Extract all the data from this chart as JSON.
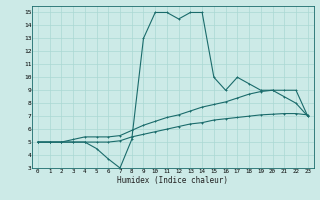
{
  "xlabel": "Humidex (Indice chaleur)",
  "xlim": [
    -0.5,
    23.5
  ],
  "ylim": [
    3,
    15.5
  ],
  "yticks": [
    3,
    4,
    5,
    6,
    7,
    8,
    9,
    10,
    11,
    12,
    13,
    14,
    15
  ],
  "xticks": [
    0,
    1,
    2,
    3,
    4,
    5,
    6,
    7,
    8,
    9,
    10,
    11,
    12,
    13,
    14,
    15,
    16,
    17,
    18,
    19,
    20,
    21,
    22,
    23
  ],
  "bg_color": "#cceae7",
  "grid_color": "#aad8d3",
  "line_color": "#1a6b6b",
  "line1_x": [
    0,
    1,
    2,
    3,
    4,
    5,
    6,
    7,
    8,
    9,
    10,
    11,
    12,
    13,
    14,
    15,
    16,
    17,
    18,
    19,
    20,
    21,
    22,
    23
  ],
  "line1_y": [
    5,
    5,
    5,
    5,
    5,
    4.5,
    3.7,
    3.0,
    5.2,
    13.0,
    15,
    15,
    14.5,
    15,
    15,
    10,
    9,
    10,
    9.5,
    9,
    9,
    8.5,
    8,
    7
  ],
  "line2_x": [
    0,
    1,
    2,
    3,
    4,
    5,
    6,
    7,
    8,
    9,
    10,
    11,
    12,
    13,
    14,
    15,
    16,
    17,
    18,
    19,
    20,
    21,
    22,
    23
  ],
  "line2_y": [
    5,
    5,
    5,
    5.2,
    5.4,
    5.4,
    5.4,
    5.5,
    5.9,
    6.3,
    6.6,
    6.9,
    7.1,
    7.4,
    7.7,
    7.9,
    8.1,
    8.4,
    8.7,
    8.9,
    9.0,
    9.0,
    9.0,
    7.0
  ],
  "line3_x": [
    0,
    1,
    2,
    3,
    4,
    5,
    6,
    7,
    8,
    9,
    10,
    11,
    12,
    13,
    14,
    15,
    16,
    17,
    18,
    19,
    20,
    21,
    22,
    23
  ],
  "line3_y": [
    5,
    5,
    5,
    5,
    5,
    5,
    5,
    5.1,
    5.4,
    5.6,
    5.8,
    6.0,
    6.2,
    6.4,
    6.5,
    6.7,
    6.8,
    6.9,
    7.0,
    7.1,
    7.15,
    7.2,
    7.2,
    7.1
  ]
}
